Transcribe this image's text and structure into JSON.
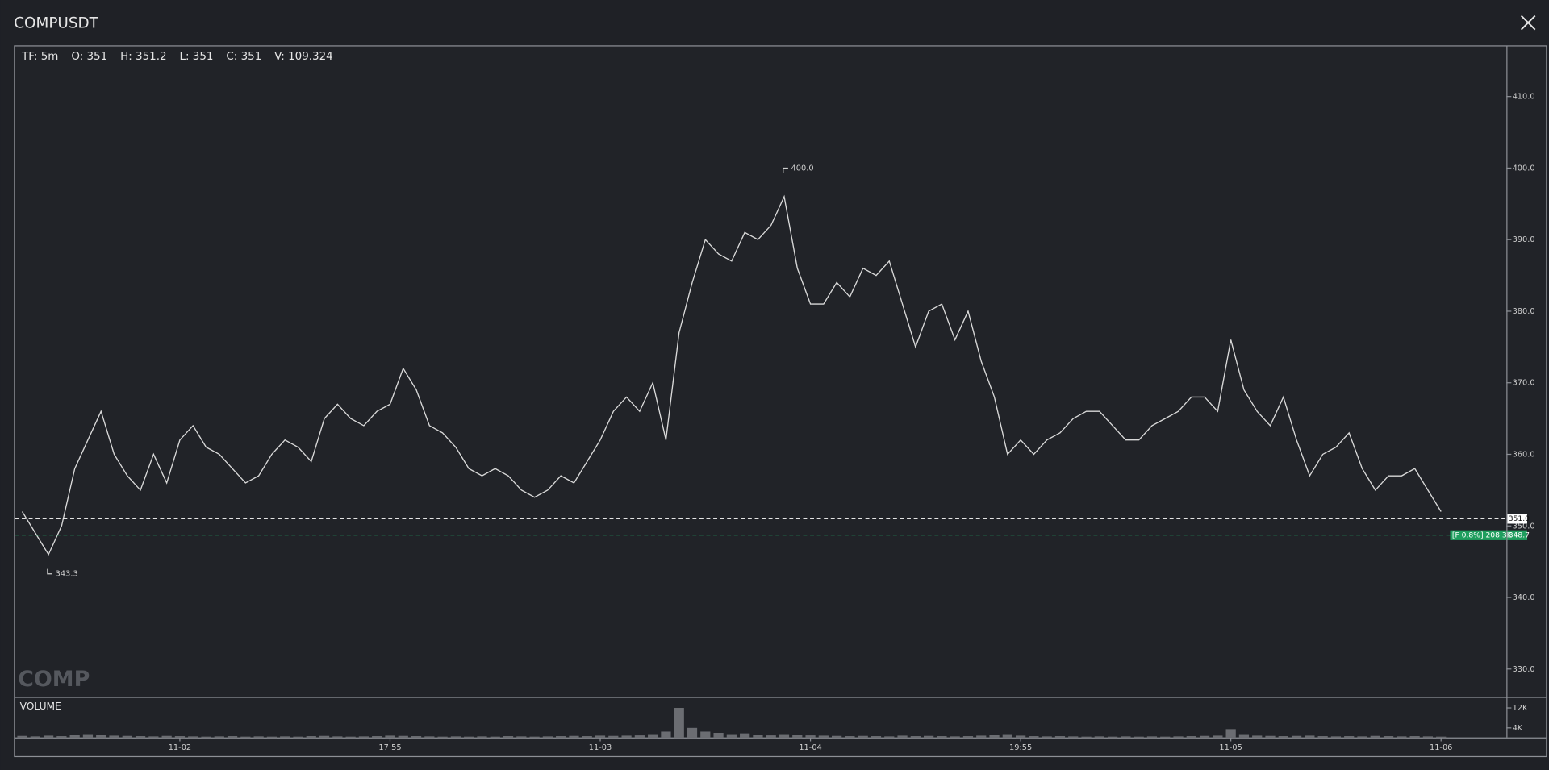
{
  "header": {
    "title": "COMPUSDT",
    "info": [
      "TF: 5m",
      "O: 351",
      "H: 351.2",
      "L: 351",
      "C: 351",
      "V: 109.324"
    ],
    "watermark": "COMP"
  },
  "chart_data": [
    {
      "type": "line",
      "series": [
        {
          "name": "COMPUSDT",
          "color": "#d9d9d9",
          "values": [
            352,
            349,
            346,
            350,
            358,
            362,
            366,
            360,
            357,
            355,
            360,
            356,
            362,
            364,
            361,
            360,
            358,
            356,
            357,
            360,
            362,
            361,
            359,
            365,
            367,
            365,
            364,
            366,
            367,
            372,
            369,
            364,
            363,
            361,
            358,
            357,
            358,
            357,
            355,
            354,
            355,
            357,
            356,
            359,
            362,
            366,
            368,
            366,
            370,
            362,
            377,
            384,
            390,
            388,
            387,
            391,
            390,
            392,
            396,
            386,
            381,
            381,
            384,
            382,
            386,
            385,
            387,
            381,
            375,
            380,
            381,
            376,
            380,
            373,
            368,
            360,
            362,
            360,
            362,
            363,
            365,
            366,
            366,
            364,
            362,
            362,
            364,
            365,
            366,
            368,
            368,
            366,
            376,
            369,
            366,
            364,
            368,
            362,
            357,
            360,
            361,
            363,
            358,
            355,
            357,
            357,
            358,
            355,
            352
          ]
        }
      ],
      "ylim": [
        326.1,
        417.0
      ],
      "yticks": [
        {
          "value": 330,
          "label": "330.0"
        },
        {
          "value": 340,
          "label": "340.0"
        },
        {
          "value": 350,
          "label": "350.0"
        },
        {
          "value": 360,
          "label": "360.0"
        },
        {
          "value": 370,
          "label": "370.0"
        },
        {
          "value": 380,
          "label": "380.0"
        },
        {
          "value": 390,
          "label": "390.0"
        },
        {
          "value": 400,
          "label": "400.0"
        },
        {
          "value": 410,
          "label": "410.0"
        }
      ],
      "annotations": [
        {
          "kind": "high",
          "value": 400,
          "label": "400.0"
        },
        {
          "kind": "low",
          "value": 343.3,
          "label": "343.3"
        }
      ],
      "price_lines": [
        {
          "value": 351,
          "label": "351.0",
          "color": "#ffffff"
        },
        {
          "value": 348.7,
          "label": "348.7",
          "note": "[F 0.8%] 208.3K",
          "color": "#1f9e5e"
        }
      ]
    },
    {
      "type": "bar",
      "title": "VOLUME",
      "color": "#6b6d72",
      "categories": [
        null,
        null,
        null,
        null,
        null,
        null,
        null,
        null,
        null,
        null,
        null,
        null,
        "11-02",
        null,
        null,
        null,
        null,
        null,
        null,
        null,
        null,
        null,
        null,
        null,
        null,
        null,
        null,
        null,
        "17:55",
        null,
        null,
        null,
        null,
        null,
        null,
        null,
        null,
        null,
        null,
        null,
        null,
        null,
        null,
        null,
        "11-03",
        null,
        null,
        null,
        null,
        null,
        null,
        null,
        null,
        null,
        null,
        null,
        null,
        null,
        null,
        null,
        "11-04",
        null,
        null,
        null,
        null,
        null,
        null,
        null,
        null,
        null,
        null,
        null,
        null,
        null,
        null,
        null,
        "19:55",
        null,
        null,
        null,
        null,
        null,
        null,
        null,
        null,
        null,
        null,
        null,
        null,
        null,
        null,
        null,
        "11-05",
        null,
        null,
        null,
        null,
        null,
        null,
        null,
        null,
        null,
        null,
        null,
        null,
        null,
        null,
        null,
        "11-06"
      ],
      "values": [
        800,
        600,
        900,
        700,
        1200,
        1500,
        1100,
        900,
        800,
        700,
        600,
        800,
        700,
        600,
        500,
        600,
        700,
        500,
        600,
        500,
        600,
        500,
        700,
        800,
        600,
        500,
        600,
        700,
        900,
        800,
        700,
        600,
        500,
        600,
        500,
        600,
        500,
        700,
        600,
        500,
        600,
        700,
        800,
        700,
        900,
        800,
        900,
        1000,
        1500,
        2500,
        12000,
        4000,
        2500,
        2000,
        1500,
        1800,
        1200,
        1000,
        1500,
        1200,
        1000,
        900,
        800,
        700,
        800,
        700,
        600,
        900,
        700,
        800,
        700,
        600,
        700,
        900,
        1200,
        1500,
        900,
        700,
        600,
        700,
        600,
        500,
        600,
        500,
        600,
        500,
        600,
        500,
        600,
        700,
        800,
        900,
        3500,
        1500,
        900,
        800,
        700,
        800,
        900,
        700,
        600,
        700,
        600,
        800,
        700,
        600,
        700,
        600,
        500
      ],
      "ylim": [
        0,
        16000
      ],
      "yticks": [
        {
          "value": 4000,
          "label": "4K"
        },
        {
          "value": 12000,
          "label": "12K"
        }
      ]
    }
  ]
}
